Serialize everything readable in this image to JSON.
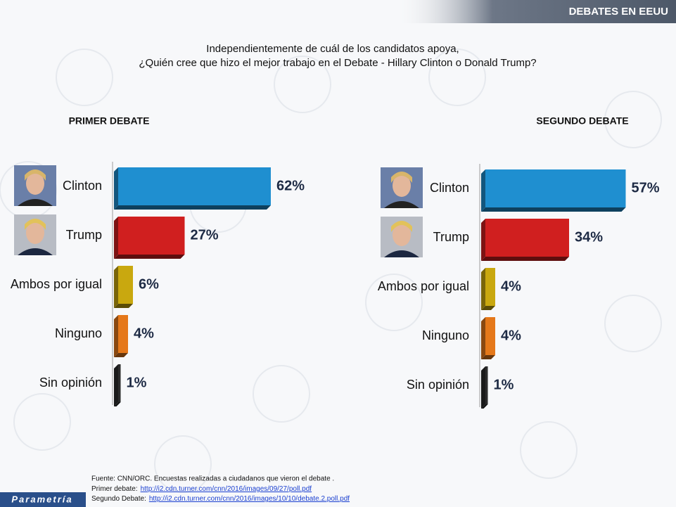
{
  "header": "DEBATES EN EEUU",
  "question": [
    "Independientemente de cuál de los candidatos apoya,",
    "¿Quién cree que hizo el mejor trabajo en el Debate - Hillary Clinton o Donald Trump?"
  ],
  "chart_data": [
    {
      "type": "bar",
      "orientation": "horizontal",
      "title": "PRIMER DEBATE",
      "categories": [
        "Clinton",
        "Trump",
        "Ambos por igual",
        "Ninguno",
        "Sin opinión"
      ],
      "values": [
        62,
        27,
        6,
        4,
        1
      ],
      "value_labels": [
        "62%",
        "27%",
        "6%",
        "4%",
        "1%"
      ],
      "colors": [
        "#1f8fd0",
        "#d01f1f",
        "#c9a80f",
        "#e5781a",
        "#2b2b2b"
      ]
    },
    {
      "type": "bar",
      "orientation": "horizontal",
      "title": "SEGUNDO DEBATE",
      "categories": [
        "Clinton",
        "Trump",
        "Ambos por igual",
        "Ninguno",
        "Sin opinión"
      ],
      "values": [
        57,
        34,
        4,
        4,
        1
      ],
      "value_labels": [
        "57%",
        "34%",
        "4%",
        "4%",
        "1%"
      ],
      "colors": [
        "#1f8fd0",
        "#d01f1f",
        "#c9a80f",
        "#e5781a",
        "#2b2b2b"
      ]
    }
  ],
  "footer": {
    "source": "Fuente: CNN/ORC. Encuestas realizadas a ciudadanos que vieron el debate .",
    "links": [
      {
        "label": "Primer debate:",
        "url": "http://i2.cdn.turner.com/cnn/2016/images/09/27/poll.pdf"
      },
      {
        "label": "Segundo Debate:",
        "url": "http://i2.cdn.turner.com/cnn/2016/images/10/10/debate.2.poll.pdf"
      }
    ]
  },
  "logo": "Parametría"
}
